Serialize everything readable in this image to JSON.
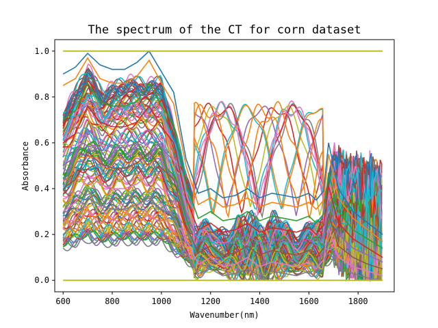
{
  "chart_data": {
    "type": "line",
    "title": "The spectrum of the CT for corn dataset",
    "xlabel": "Wavenumber(nm)",
    "ylabel": "Absorbance",
    "xlim": [
      566,
      1947
    ],
    "ylim": [
      -0.05,
      1.05
    ],
    "x_ticks": [
      {
        "value": 600,
        "label": "600"
      },
      {
        "value": 800,
        "label": "800"
      },
      {
        "value": 1000,
        "label": "1000"
      },
      {
        "value": 1200,
        "label": "1200"
      },
      {
        "value": 1400,
        "label": "1400"
      },
      {
        "value": 1600,
        "label": "1600"
      },
      {
        "value": 1800,
        "label": "1800"
      }
    ],
    "y_ticks": [
      {
        "value": 0.0,
        "label": "0.0"
      },
      {
        "value": 0.2,
        "label": "0.2"
      },
      {
        "value": 0.4,
        "label": "0.4"
      },
      {
        "value": 0.6,
        "label": "0.6"
      },
      {
        "value": 0.8,
        "label": "0.8"
      },
      {
        "value": 1.0,
        "label": "1.0"
      }
    ],
    "x_range": [
      600,
      1900
    ],
    "legend": "none",
    "grid": false,
    "series_count": 120,
    "colors": [
      "#1f77b4",
      "#ff7f0e",
      "#2ca02c",
      "#d62728",
      "#9467bd",
      "#8c564b",
      "#e377c2",
      "#7f7f7f",
      "#bcbd22",
      "#17becf"
    ],
    "reference_lines": [
      {
        "value": 1.0,
        "x": [
          600,
          1900
        ]
      },
      {
        "value": 0.0,
        "x": [
          600,
          1900
        ]
      }
    ],
    "series": [
      {
        "values": [
          0.9,
          0.93,
          0.99,
          0.94,
          0.92,
          0.92,
          0.95,
          1.0,
          0.91,
          0.82,
          0.53,
          0.38,
          0.4,
          0.36,
          0.37,
          0.4,
          0.36,
          0.38,
          0.37,
          0.36,
          0.38,
          0.35,
          0.39,
          0.6,
          0.4,
          0.3,
          0.25,
          0.2
        ]
      },
      {
        "values": [
          0.85,
          0.88,
          0.97,
          0.88,
          0.86,
          0.86,
          0.89,
          0.96,
          0.86,
          0.77,
          0.5,
          0.33,
          0.36,
          0.32,
          0.33,
          0.36,
          0.32,
          0.34,
          0.33,
          0.32,
          0.34,
          0.31,
          0.35,
          0.55,
          0.36,
          0.27,
          0.22,
          0.17
        ]
      },
      {
        "values": [
          0.7,
          0.74,
          0.86,
          0.78,
          0.76,
          0.76,
          0.78,
          0.86,
          0.76,
          0.68,
          0.42,
          0.27,
          0.3,
          0.26,
          0.27,
          0.3,
          0.26,
          0.28,
          0.27,
          0.26,
          0.28,
          0.25,
          0.29,
          0.47,
          0.3,
          0.22,
          0.18,
          0.14
        ]
      },
      {
        "values": [
          0.6,
          0.64,
          0.76,
          0.69,
          0.67,
          0.67,
          0.69,
          0.76,
          0.67,
          0.6,
          0.36,
          0.22,
          0.25,
          0.21,
          0.22,
          0.25,
          0.21,
          0.23,
          0.22,
          0.21,
          0.23,
          0.2,
          0.24,
          0.41,
          0.25,
          0.18,
          0.14,
          0.1
        ]
      },
      {
        "values": [
          0.5,
          0.54,
          0.66,
          0.6,
          0.58,
          0.58,
          0.6,
          0.66,
          0.58,
          0.52,
          0.3,
          0.17,
          0.2,
          0.16,
          0.17,
          0.2,
          0.16,
          0.18,
          0.17,
          0.16,
          0.18,
          0.15,
          0.19,
          0.35,
          0.2,
          0.14,
          0.11,
          0.08
        ]
      },
      {
        "values": [
          0.4,
          0.44,
          0.56,
          0.51,
          0.49,
          0.49,
          0.51,
          0.56,
          0.49,
          0.44,
          0.24,
          0.12,
          0.15,
          0.11,
          0.12,
          0.15,
          0.11,
          0.13,
          0.12,
          0.11,
          0.13,
          0.1,
          0.14,
          0.29,
          0.15,
          0.1,
          0.07,
          0.05
        ]
      },
      {
        "values": [
          0.3,
          0.34,
          0.46,
          0.42,
          0.4,
          0.4,
          0.42,
          0.46,
          0.4,
          0.36,
          0.18,
          0.07,
          0.1,
          0.06,
          0.07,
          0.1,
          0.06,
          0.08,
          0.07,
          0.06,
          0.08,
          0.05,
          0.09,
          0.23,
          0.1,
          0.06,
          0.04,
          0.02
        ]
      },
      {
        "values": [
          0.2,
          0.25,
          0.36,
          0.33,
          0.31,
          0.31,
          0.33,
          0.36,
          0.31,
          0.28,
          0.12,
          0.03,
          0.05,
          0.02,
          0.03,
          0.05,
          0.02,
          0.04,
          0.03,
          0.02,
          0.04,
          0.01,
          0.05,
          0.17,
          0.05,
          0.03,
          0.01,
          0.0
        ]
      }
    ],
    "series_x": [
      600,
      650,
      700,
      750,
      800,
      850,
      900,
      950,
      1000,
      1050,
      1100,
      1150,
      1200,
      1250,
      1300,
      1350,
      1400,
      1450,
      1500,
      1550,
      1600,
      1630,
      1660,
      1680,
      1720,
      1780,
      1840,
      1900
    ]
  }
}
